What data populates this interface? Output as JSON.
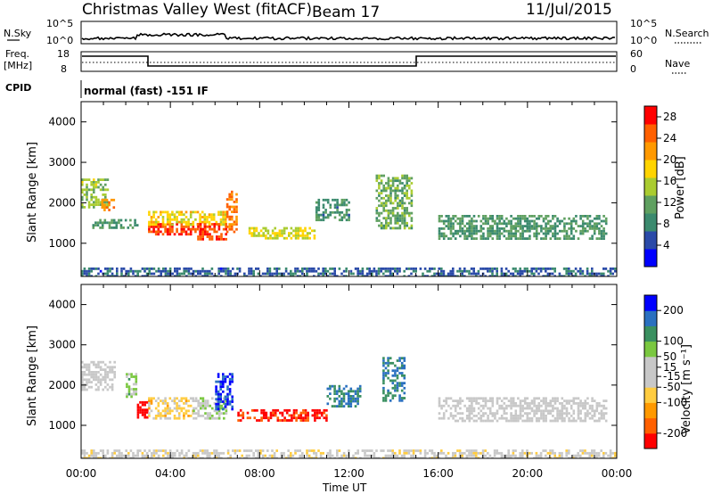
{
  "header": {
    "station": "Christmas Valley West (fitACF)",
    "beam": "Beam 17",
    "date": "11/Jul/2015"
  },
  "top_strip": {
    "nsky_label": "N.Sky",
    "nsky_ticks": [
      "10^5",
      "10^0"
    ],
    "nsearch_label": "N.Search",
    "nsearch_ticks": [
      "10^5",
      "10^0"
    ],
    "freq_label_1": "Freq.",
    "freq_label_2": "[MHz]",
    "freq_ticks": [
      "18",
      "8"
    ],
    "nave_label": "Nave",
    "nave_ticks": [
      "60",
      "0"
    ],
    "cpid_label": "CPID",
    "cpid_value": "normal (fast) -151 IF"
  },
  "colors": {
    "power": [
      "#0000ff",
      "#2a4aa8",
      "#3b8a6e",
      "#5fa060",
      "#aacc30",
      "#ffd400",
      "#ff9900",
      "#ff6000",
      "#ff0000"
    ],
    "velocity": [
      "#ff0000",
      "#ff6000",
      "#ff9900",
      "#ffcc40",
      "#c8c8c8",
      "#c8c8c8",
      "#7ac840",
      "#3a9060",
      "#2a70c0",
      "#0000ff"
    ]
  },
  "chart_data": [
    {
      "type": "heatmap",
      "panel": "power",
      "x": [
        "00:00",
        "04:00",
        "08:00",
        "12:00",
        "16:00",
        "20:00",
        "00:00"
      ],
      "ylabel": "Slant Range [km]",
      "yticks": [
        "4000",
        "3000",
        "2000",
        "1000"
      ],
      "ylim": [
        180,
        4500
      ],
      "colorbar_label": "Power [dB]",
      "colorbar_ticks": [
        "28",
        "24",
        "20",
        "16",
        "12",
        "8",
        "4"
      ],
      "clim": [
        0,
        30
      ],
      "regions": [
        {
          "t0": 0.0,
          "t1": 1.2,
          "r0": 1900,
          "r1": 2600,
          "level": 14
        },
        {
          "t0": 0.9,
          "t1": 1.5,
          "r0": 1800,
          "r1": 2100,
          "level": 22
        },
        {
          "t0": 0.5,
          "t1": 2.5,
          "r0": 1400,
          "r1": 1600,
          "level": 10
        },
        {
          "t0": 3.0,
          "t1": 5.5,
          "r0": 1200,
          "r1": 1500,
          "level": 27
        },
        {
          "t0": 3.0,
          "t1": 6.5,
          "r0": 1450,
          "r1": 1800,
          "level": 18
        },
        {
          "t0": 5.2,
          "t1": 6.5,
          "r0": 1100,
          "r1": 1500,
          "level": 26
        },
        {
          "t0": 6.5,
          "t1": 7.0,
          "r0": 1300,
          "r1": 2300,
          "level": 24
        },
        {
          "t0": 7.5,
          "t1": 10.5,
          "r0": 1100,
          "r1": 1400,
          "level": 17
        },
        {
          "t0": 10.5,
          "t1": 12.0,
          "r0": 1600,
          "r1": 2100,
          "level": 9
        },
        {
          "t0": 13.2,
          "t1": 14.8,
          "r0": 1400,
          "r1": 2700,
          "level": 12
        },
        {
          "t0": 16.0,
          "t1": 23.5,
          "r0": 1100,
          "r1": 1700,
          "level": 10
        },
        {
          "t0": 0.0,
          "t1": 24.0,
          "r0": 200,
          "r1": 400,
          "level": 6
        }
      ]
    },
    {
      "type": "heatmap",
      "panel": "velocity",
      "x": [
        "00:00",
        "04:00",
        "08:00",
        "12:00",
        "16:00",
        "20:00",
        "00:00"
      ],
      "xlabel": "Time UT",
      "ylabel": "Slant Range [km]",
      "yticks": [
        "4000",
        "3000",
        "2000",
        "1000"
      ],
      "ylim": [
        180,
        4500
      ],
      "colorbar_label": "Velocity [m s⁻¹]",
      "colorbar_ticks": [
        "200",
        "100",
        "50",
        "15",
        "-15",
        "-50",
        "-100",
        "-200"
      ],
      "clim": [
        -250,
        250
      ],
      "regions": [
        {
          "t0": 0.0,
          "t1": 1.5,
          "r0": 1900,
          "r1": 2600,
          "level": 0
        },
        {
          "t0": 2.0,
          "t1": 2.5,
          "r0": 1700,
          "r1": 2300,
          "level": 60
        },
        {
          "t0": 2.5,
          "t1": 3.0,
          "r0": 1200,
          "r1": 1600,
          "level": -250
        },
        {
          "t0": 3.0,
          "t1": 5.0,
          "r0": 1200,
          "r1": 1700,
          "level": -60
        },
        {
          "t0": 5.0,
          "t1": 6.5,
          "r0": 1200,
          "r1": 1700,
          "level": 40
        },
        {
          "t0": 6.0,
          "t1": 6.8,
          "r0": 1400,
          "r1": 2300,
          "level": 200
        },
        {
          "t0": 7.0,
          "t1": 11.0,
          "r0": 1100,
          "r1": 1400,
          "level": -220
        },
        {
          "t0": 11.0,
          "t1": 12.5,
          "r0": 1500,
          "r1": 2000,
          "level": 150
        },
        {
          "t0": 13.5,
          "t1": 14.5,
          "r0": 1600,
          "r1": 2700,
          "level": 150
        },
        {
          "t0": 16.0,
          "t1": 23.5,
          "r0": 1100,
          "r1": 1700,
          "level": 0
        },
        {
          "t0": 0.0,
          "t1": 24.0,
          "r0": 200,
          "r1": 400,
          "level": -20
        }
      ]
    }
  ]
}
